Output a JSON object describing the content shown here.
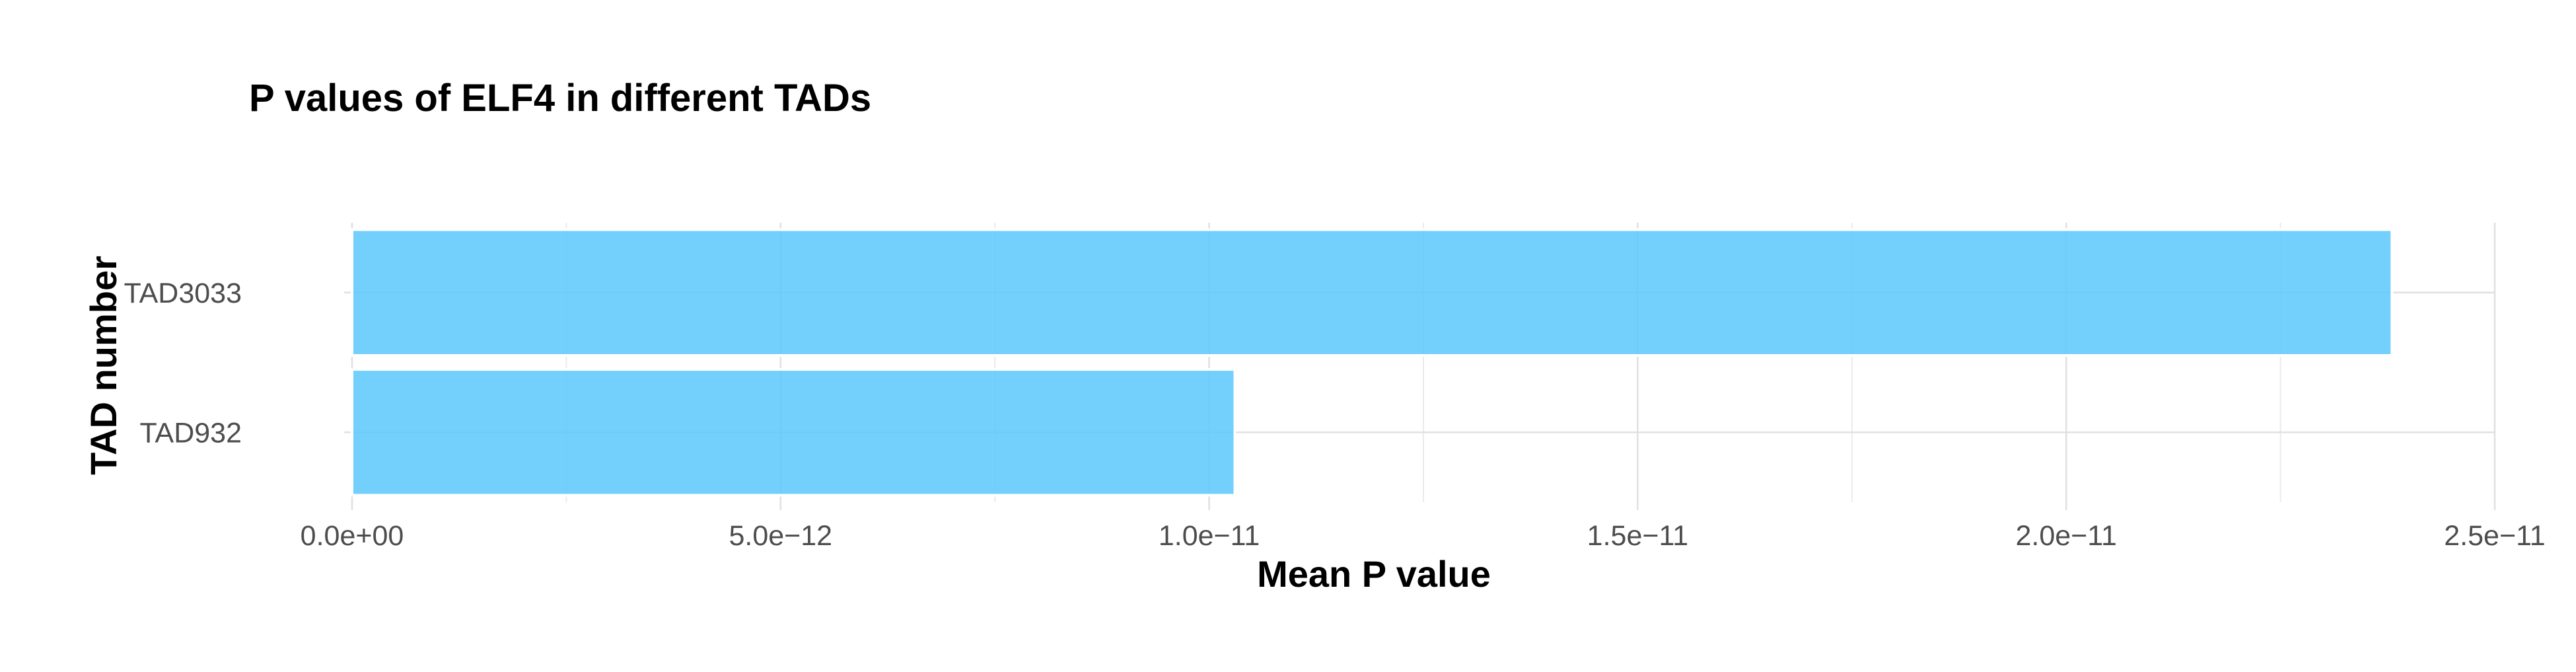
{
  "chart_data": {
    "type": "bar",
    "orientation": "horizontal",
    "title": "P values of ELF4 in different TADs",
    "xlabel": "Mean P value",
    "ylabel": "TAD number",
    "categories": [
      "TAD3033",
      "TAD932"
    ],
    "values": [
      2.38e-11,
      1.03e-11
    ],
    "xlim": [
      0,
      2.5e-11
    ],
    "x_ticks": [
      0,
      5e-12,
      1e-11,
      1.5e-11,
      2e-11,
      2.5e-11
    ],
    "x_tick_labels": [
      "0.0e+00",
      "5.0e−12",
      "1.0e−11",
      "1.5e−11",
      "2.0e−11",
      "2.5e−11"
    ],
    "grid": true,
    "bar_color": "#5bc8fc",
    "bar_opacity": 0.85
  }
}
